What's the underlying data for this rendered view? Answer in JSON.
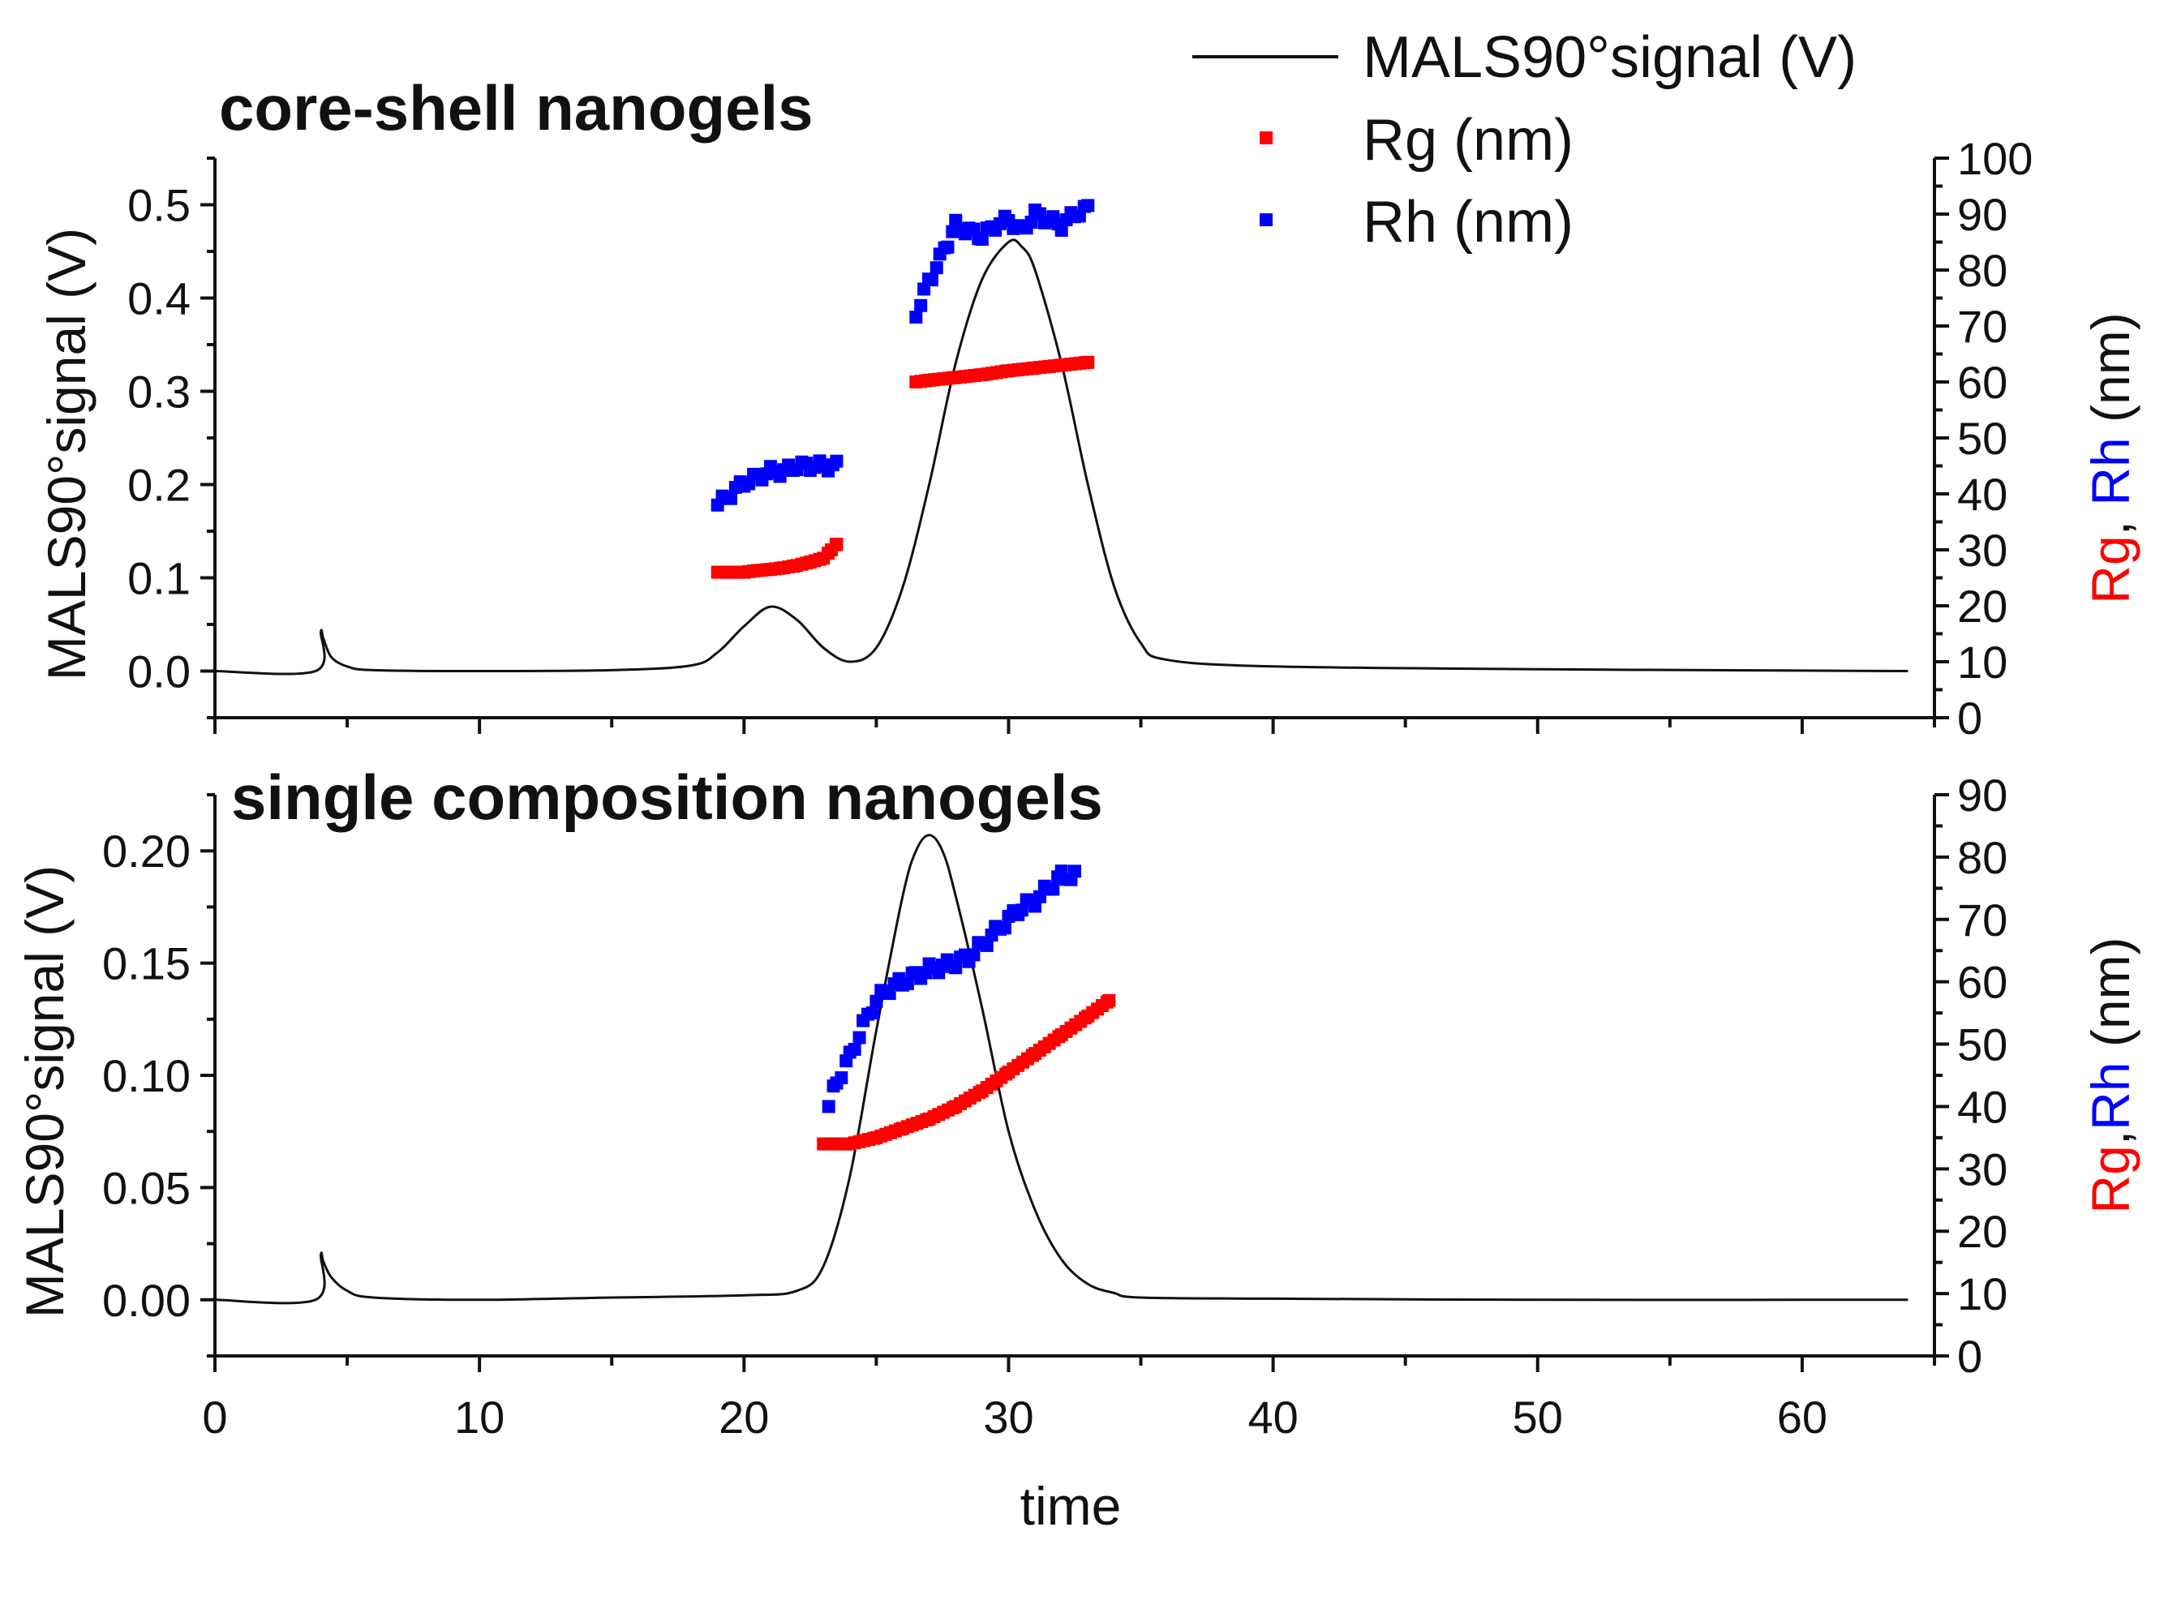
{
  "chart_data": [
    {
      "type": "line+scatter",
      "title": "core-shell nanogels",
      "xlabel": "time",
      "ylabel": "MALS90°signal (V)",
      "y2label": [
        "Rg",
        ", ",
        "Rh",
        " (nm)"
      ],
      "xlim": [
        0,
        65
      ],
      "ylim": [
        -0.05,
        0.55
      ],
      "y2lim": [
        0,
        100
      ],
      "xticks": [
        "0",
        "10",
        "20",
        "30",
        "40",
        "50",
        "60"
      ],
      "yticks": [
        "0.0",
        "0.1",
        "0.2",
        "0.3",
        "0.4",
        "0.5"
      ],
      "y2ticks": [
        "0",
        "10",
        "20",
        "30",
        "40",
        "50",
        "60",
        "70",
        "80",
        "90",
        "100"
      ],
      "signal": {
        "name": "MALS90°signal (V)",
        "x": [
          0,
          3.8,
          4.0,
          4.1,
          4.4,
          5.0,
          6.0,
          10,
          15,
          18,
          19,
          20,
          21,
          22,
          23,
          24,
          25,
          26,
          27,
          28,
          29,
          30,
          30.5,
          31,
          32,
          33,
          34,
          35,
          36,
          40,
          50,
          60,
          64
        ],
        "values": [
          0.0,
          0.0,
          0.042,
          0.035,
          0.015,
          0.005,
          0.001,
          0.0,
          0.001,
          0.006,
          0.02,
          0.048,
          0.069,
          0.055,
          0.025,
          0.01,
          0.025,
          0.09,
          0.2,
          0.33,
          0.42,
          0.46,
          0.455,
          0.43,
          0.33,
          0.2,
          0.09,
          0.03,
          0.012,
          0.005,
          0.002,
          0.0005,
          0.0
        ]
      },
      "series": [
        {
          "name": "Rg (nm)",
          "color": "#ff0000",
          "x": [
            19,
            19.5,
            20,
            20.5,
            21,
            21.5,
            22,
            22.5,
            23,
            23.3,
            23.5,
            26.5,
            27,
            28,
            29,
            30,
            31,
            32,
            33
          ],
          "values": [
            26,
            26,
            26,
            26.3,
            26.5,
            26.8,
            27.2,
            27.8,
            28.5,
            30,
            31,
            60,
            60.3,
            60.8,
            61.3,
            62,
            62.5,
            63,
            63.5
          ]
        },
        {
          "name": "Rh (nm)",
          "color": "#0000ff",
          "x": [
            19,
            19.5,
            20,
            20.5,
            21,
            21.5,
            22,
            22.5,
            23,
            23.5,
            26.5,
            26.8,
            27.1,
            27.4,
            27.7,
            28,
            28.5,
            29,
            29.5,
            30,
            30.5,
            31,
            31.5,
            32,
            32.5,
            33
          ],
          "values": [
            38,
            40,
            42,
            43,
            44,
            44,
            45,
            45,
            45,
            45,
            72,
            76,
            79,
            82,
            85,
            88,
            87,
            86,
            88,
            89,
            87,
            90,
            89,
            88,
            90,
            91
          ]
        }
      ],
      "legend": {
        "placement": "top-right",
        "entries": [
          "MALS90°signal (V)",
          "Rg (nm)",
          "Rh (nm)"
        ]
      }
    },
    {
      "type": "line+scatter",
      "title": "single composition nanogels",
      "xlabel": "time",
      "ylabel": "MALS90°signal (V)",
      "y2label": [
        "Rg",
        ",",
        "Rh",
        " (nm)"
      ],
      "xlim": [
        0,
        65
      ],
      "ylim": [
        -0.025,
        0.225
      ],
      "y2lim": [
        0,
        90
      ],
      "xticks": [
        "0",
        "10",
        "20",
        "30",
        "40",
        "50",
        "60"
      ],
      "yticks": [
        "0.00",
        "0.05",
        "0.10",
        "0.15",
        "0.20"
      ],
      "y2ticks": [
        "0",
        "10",
        "20",
        "30",
        "40",
        "50",
        "60",
        "70",
        "80",
        "90"
      ],
      "signal": {
        "name": "MALS90°signal (V)",
        "x": [
          0,
          3.8,
          4.0,
          4.1,
          4.4,
          5.0,
          6.0,
          10,
          15,
          20,
          22,
          23,
          24,
          25,
          26,
          26.5,
          27,
          27.5,
          28,
          29,
          30,
          31,
          32,
          33,
          34,
          35,
          40,
          50,
          60,
          64
        ],
        "values": [
          0.0,
          0.0,
          0.02,
          0.017,
          0.01,
          0.004,
          0.001,
          0.0,
          0.001,
          0.002,
          0.004,
          0.015,
          0.055,
          0.12,
          0.18,
          0.2,
          0.207,
          0.2,
          0.18,
          0.13,
          0.075,
          0.04,
          0.018,
          0.007,
          0.003,
          0.001,
          0.0005,
          0.0,
          0.0,
          0.0
        ]
      },
      "series": [
        {
          "name": "Rg (nm)",
          "color": "#ff0000",
          "x": [
            23,
            24,
            25,
            26,
            27,
            28,
            29,
            30,
            31,
            32,
            33,
            33.8
          ],
          "values": [
            34,
            34,
            35,
            36.5,
            38,
            40,
            42.5,
            45.5,
            48.5,
            51.5,
            54.5,
            57
          ]
        },
        {
          "name": "Rh (nm)",
          "color": "#0000ff",
          "x": [
            23.2,
            23.5,
            24,
            24.5,
            25,
            25.5,
            26,
            26.5,
            27,
            27.5,
            28,
            28.5,
            29,
            29.5,
            30,
            30.5,
            31,
            31.5,
            32,
            32.5
          ],
          "values": [
            40,
            44,
            48,
            53,
            57,
            59,
            60,
            61,
            62,
            62.5,
            63,
            64,
            66,
            68,
            70,
            72,
            73,
            75,
            77,
            77
          ]
        }
      ]
    }
  ]
}
